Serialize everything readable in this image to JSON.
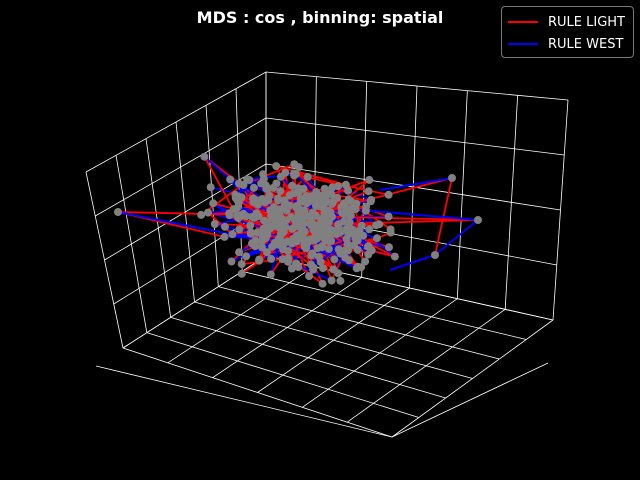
{
  "chart_data": {
    "type": "scatter",
    "subtype": "3d-line-network",
    "title": "MDS : cos , binning: spatial",
    "xlabel": "",
    "ylabel": "",
    "zlabel": "",
    "tick_labels_shown": false,
    "grid": true,
    "background": "#000000",
    "grid_color": "#ffffff",
    "node_color": "#808080",
    "node_count_approx": 360,
    "legend": {
      "placement": "top-right"
    },
    "series": [
      {
        "name": "RULE LIGHT",
        "color": "#ff0000",
        "marker": "line"
      },
      {
        "name": "RULE WEST",
        "color": "#0000ff",
        "marker": "line"
      }
    ]
  }
}
